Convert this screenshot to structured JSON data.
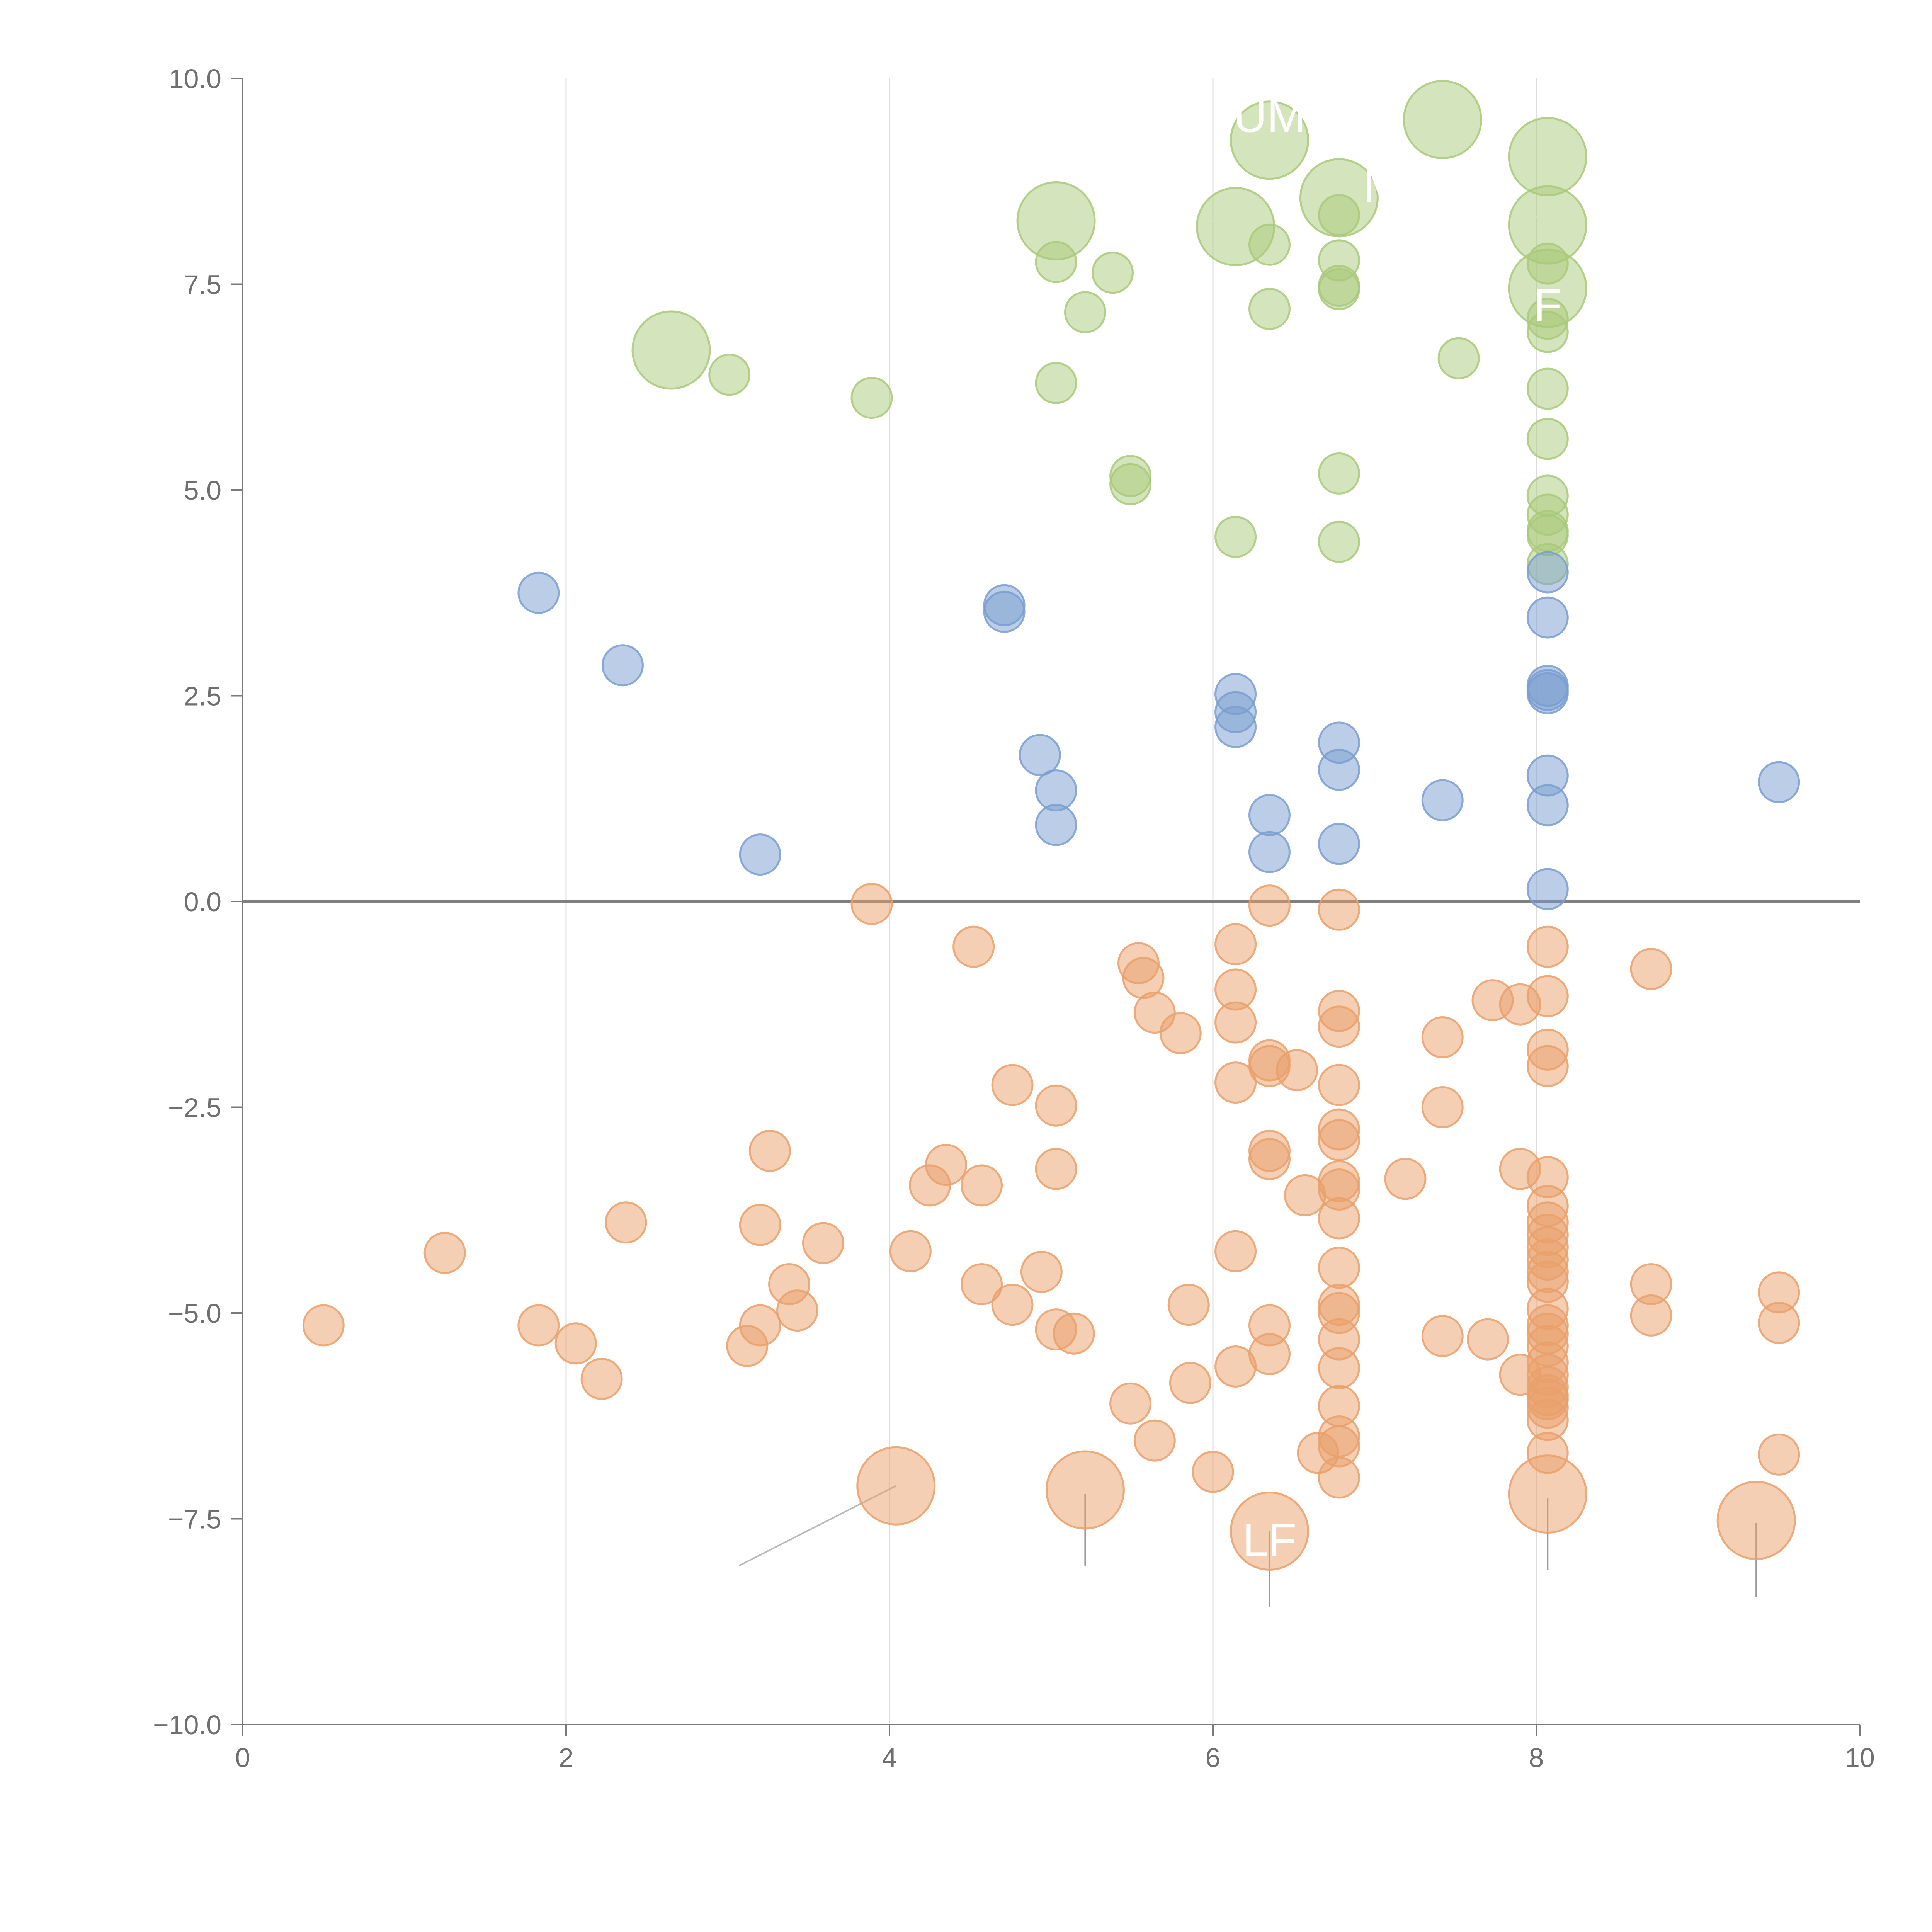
{
  "colors": {
    "green": "#a9c97a",
    "blue": "#7a9dd0",
    "orange": "#e9a06a",
    "axis": "#7a7a7a",
    "grid": "#dcdcdc",
    "text": "#6f6f6f"
  },
  "chart_data": {
    "type": "scatter",
    "title": "",
    "xlabel": "",
    "ylabel": "",
    "xlim": [
      0,
      10
    ],
    "ylim": [
      -10,
      10
    ],
    "x_ticks": [
      "0",
      "2",
      "4",
      "6",
      "8",
      "10"
    ],
    "y_ticks": [
      "10.0",
      "7.5",
      "5.0",
      "2.5",
      "0.0",
      "−2.5",
      "−5.0",
      "−7.5",
      "−10.0"
    ],
    "x_gridlines": [
      2,
      4,
      6,
      8
    ],
    "zero_line": 0,
    "series": [
      {
        "name": "green",
        "color": "green",
        "points": [
          [
            2.65,
            6.7,
            "L"
          ],
          [
            3.01,
            6.4
          ],
          [
            3.89,
            6.12
          ],
          [
            5.03,
            8.27,
            "L"
          ],
          [
            5.03,
            7.77
          ],
          [
            5.38,
            7.64
          ],
          [
            5.21,
            7.16
          ],
          [
            5.03,
            6.3
          ],
          [
            5.49,
            5.17
          ],
          [
            5.49,
            5.07
          ],
          [
            6.14,
            8.2,
            "L"
          ],
          [
            6.35,
            9.25,
            "L"
          ],
          [
            6.35,
            7.98
          ],
          [
            6.35,
            7.2
          ],
          [
            6.14,
            4.43
          ],
          [
            6.78,
            8.55,
            "L"
          ],
          [
            6.78,
            8.34
          ],
          [
            6.78,
            7.79
          ],
          [
            6.78,
            7.48
          ],
          [
            6.78,
            7.44
          ],
          [
            6.78,
            5.2
          ],
          [
            6.78,
            4.37
          ],
          [
            7.42,
            9.5,
            "L"
          ],
          [
            7.52,
            6.6
          ],
          [
            8.07,
            9.05,
            "L"
          ],
          [
            8.07,
            8.22,
            "L"
          ],
          [
            8.07,
            7.45,
            "L"
          ],
          [
            8.07,
            7.75
          ],
          [
            8.07,
            7.08
          ],
          [
            8.07,
            6.92
          ],
          [
            8.07,
            6.23
          ],
          [
            8.07,
            5.62
          ],
          [
            8.07,
            4.93
          ],
          [
            8.07,
            4.7
          ],
          [
            8.07,
            4.5
          ],
          [
            8.07,
            4.45
          ],
          [
            8.07,
            4.1
          ]
        ]
      },
      {
        "name": "blue",
        "color": "blue",
        "points": [
          [
            1.83,
            3.75
          ],
          [
            2.35,
            2.87
          ],
          [
            3.2,
            0.57
          ],
          [
            4.71,
            3.6
          ],
          [
            4.71,
            3.52
          ],
          [
            4.93,
            1.78
          ],
          [
            5.03,
            1.35
          ],
          [
            5.03,
            0.93
          ],
          [
            6.14,
            2.52
          ],
          [
            6.14,
            2.3
          ],
          [
            6.14,
            2.12
          ],
          [
            6.35,
            1.05
          ],
          [
            6.35,
            0.6
          ],
          [
            6.78,
            1.93
          ],
          [
            6.78,
            1.6
          ],
          [
            6.78,
            0.7
          ],
          [
            7.42,
            1.23
          ],
          [
            8.07,
            4.0
          ],
          [
            8.07,
            3.45
          ],
          [
            8.07,
            2.62
          ],
          [
            8.07,
            2.57
          ],
          [
            8.07,
            2.53
          ],
          [
            8.07,
            1.53
          ],
          [
            8.07,
            1.17
          ],
          [
            8.07,
            0.15
          ],
          [
            9.5,
            1.45
          ]
        ]
      },
      {
        "name": "orange",
        "color": "orange",
        "points": [
          [
            0.5,
            -5.15
          ],
          [
            1.25,
            -4.27
          ],
          [
            1.83,
            -5.15
          ],
          [
            2.06,
            -5.37
          ],
          [
            2.22,
            -5.8
          ],
          [
            2.37,
            -3.9
          ],
          [
            3.12,
            -5.4
          ],
          [
            3.2,
            -5.15
          ],
          [
            3.2,
            -3.93
          ],
          [
            3.26,
            -3.03
          ],
          [
            3.38,
            -4.65
          ],
          [
            3.43,
            -4.97
          ],
          [
            3.59,
            -4.15
          ],
          [
            3.89,
            -0.03
          ],
          [
            4.04,
            -7.1,
            "L"
          ],
          [
            4.13,
            -4.25
          ],
          [
            4.25,
            -3.45
          ],
          [
            4.35,
            -3.2
          ],
          [
            4.52,
            -0.55
          ],
          [
            4.57,
            -3.45
          ],
          [
            4.57,
            -4.65
          ],
          [
            4.76,
            -2.23
          ],
          [
            4.76,
            -4.9
          ],
          [
            4.94,
            -4.5
          ],
          [
            5.03,
            -2.48
          ],
          [
            5.03,
            -3.25
          ],
          [
            5.03,
            -5.2
          ],
          [
            5.14,
            -5.25
          ],
          [
            5.21,
            -7.15,
            "L"
          ],
          [
            5.49,
            -6.1
          ],
          [
            5.54,
            -0.75
          ],
          [
            5.57,
            -0.93
          ],
          [
            5.64,
            -1.35
          ],
          [
            5.64,
            -6.55
          ],
          [
            5.8,
            -1.6
          ],
          [
            5.85,
            -4.9
          ],
          [
            5.86,
            -5.85
          ],
          [
            6.0,
            -6.93
          ],
          [
            6.14,
            -0.52
          ],
          [
            6.14,
            -1.07
          ],
          [
            6.14,
            -1.47
          ],
          [
            6.14,
            -2.2
          ],
          [
            6.14,
            -4.25
          ],
          [
            6.14,
            -5.65
          ],
          [
            6.35,
            -0.05
          ],
          [
            6.35,
            -1.93
          ],
          [
            6.35,
            -2.0
          ],
          [
            6.35,
            -3.03
          ],
          [
            6.35,
            -3.13
          ],
          [
            6.35,
            -5.15
          ],
          [
            6.35,
            -5.5
          ],
          [
            6.35,
            -7.65,
            "L"
          ],
          [
            6.52,
            -2.05
          ],
          [
            6.57,
            -3.57
          ],
          [
            6.65,
            -6.7
          ],
          [
            6.78,
            -0.1
          ],
          [
            6.78,
            -1.33
          ],
          [
            6.78,
            -1.52
          ],
          [
            6.78,
            -2.23
          ],
          [
            6.78,
            -2.77
          ],
          [
            6.78,
            -2.9
          ],
          [
            6.78,
            -3.4
          ],
          [
            6.78,
            -3.5
          ],
          [
            6.78,
            -3.85
          ],
          [
            6.78,
            -4.45
          ],
          [
            6.78,
            -4.9
          ],
          [
            6.78,
            -5.0
          ],
          [
            6.78,
            -5.32
          ],
          [
            6.78,
            -5.67
          ],
          [
            6.78,
            -6.13
          ],
          [
            6.78,
            -6.5
          ],
          [
            6.78,
            -6.62
          ],
          [
            6.78,
            -7.0
          ],
          [
            7.19,
            -3.37
          ],
          [
            7.42,
            -1.65
          ],
          [
            7.42,
            -2.5
          ],
          [
            7.42,
            -5.28
          ],
          [
            7.7,
            -5.32
          ],
          [
            7.73,
            -1.2
          ],
          [
            7.9,
            -1.25
          ],
          [
            7.9,
            -3.25
          ],
          [
            7.9,
            -5.75
          ],
          [
            8.07,
            -0.55
          ],
          [
            8.07,
            -1.15
          ],
          [
            8.07,
            -1.8
          ],
          [
            8.07,
            -2.0
          ],
          [
            8.07,
            -3.35
          ],
          [
            8.07,
            -3.7
          ],
          [
            8.07,
            -3.9
          ],
          [
            8.07,
            -4.05
          ],
          [
            8.07,
            -4.2
          ],
          [
            8.07,
            -4.35
          ],
          [
            8.07,
            -4.5
          ],
          [
            8.07,
            -4.62
          ],
          [
            8.07,
            -4.95
          ],
          [
            8.07,
            -5.15
          ],
          [
            8.07,
            -5.25
          ],
          [
            8.07,
            -5.4
          ],
          [
            8.07,
            -5.6
          ],
          [
            8.07,
            -5.75
          ],
          [
            8.07,
            -5.9
          ],
          [
            8.07,
            -6.0
          ],
          [
            8.07,
            -6.05
          ],
          [
            8.07,
            -6.15
          ],
          [
            8.07,
            -6.3
          ],
          [
            8.07,
            -6.7
          ],
          [
            8.07,
            -7.2,
            "L"
          ],
          [
            8.71,
            -0.82
          ],
          [
            8.71,
            -4.65
          ],
          [
            8.71,
            -5.03
          ],
          [
            9.36,
            -7.52,
            "L"
          ],
          [
            9.5,
            -4.75
          ],
          [
            9.5,
            -5.12
          ],
          [
            9.5,
            -6.72
          ]
        ]
      }
    ],
    "leaders": [
      {
        "from": [
          4.04,
          -7.1
        ],
        "to": [
          3.07,
          -8.07
        ],
        "color": "#b9b9b9"
      },
      {
        "from": [
          5.21,
          -7.2
        ],
        "to": [
          5.21,
          -8.07
        ],
        "color": "#9a9a9a"
      },
      {
        "from": [
          6.35,
          -7.65
        ],
        "to": [
          6.35,
          -8.57
        ],
        "color": "#9a9a9a"
      },
      {
        "from": [
          8.07,
          -7.25
        ],
        "to": [
          8.07,
          -8.12
        ],
        "color": "#9a9a9a"
      },
      {
        "from": [
          9.36,
          -7.55
        ],
        "to": [
          9.36,
          -8.45
        ],
        "color": "#9a9a9a"
      },
      {
        "from": [
          2.65,
          6.7
        ],
        "to": [
          2.45,
          6.66
        ],
        "color": "#ffffff"
      },
      {
        "from": [
          5.03,
          8.27
        ],
        "to": [
          4.8,
          8.24
        ],
        "color": "#ffffff"
      },
      {
        "from": [
          6.14,
          8.2
        ],
        "to": [
          5.96,
          8.29
        ],
        "color": "#ffffff"
      },
      {
        "from": [
          6.35,
          9.25
        ],
        "to": [
          6.18,
          9.3
        ],
        "color": "#ffffff"
      },
      {
        "from": [
          7.42,
          9.5
        ],
        "to": [
          7.65,
          9.5
        ],
        "color": "#ffffff"
      },
      {
        "from": [
          8.07,
          9.05
        ],
        "to": [
          8.33,
          9.17
        ],
        "color": "#ffffff"
      },
      {
        "from": [
          8.07,
          8.22
        ],
        "to": [
          7.95,
          8.4
        ],
        "color": "#ffffff"
      },
      {
        "from": [
          8.07,
          7.45
        ],
        "to": [
          7.94,
          7.33
        ],
        "color": "#ffffff"
      }
    ],
    "annotations": [
      {
        "text": "UM",
        "x": 6.35,
        "y": 9.35
      },
      {
        "text": "M",
        "x": 7.05,
        "y": 8.5
      },
      {
        "text": "F",
        "x": 8.07,
        "y": 7.05
      },
      {
        "text": "LF",
        "x": 6.35,
        "y": -7.95
      }
    ]
  }
}
